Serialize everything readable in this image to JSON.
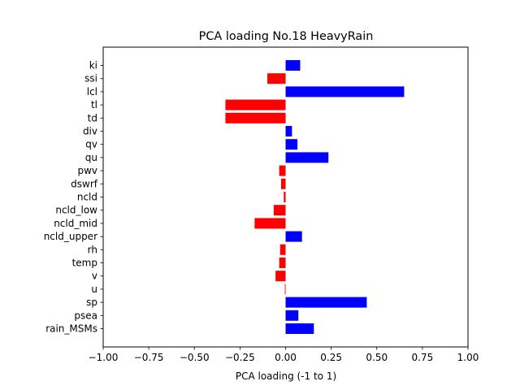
{
  "chart_data": {
    "type": "bar",
    "orientation": "horizontal",
    "title": "PCA loading No.18 HeavyRain",
    "xlabel": "PCA loading (-1 to 1)",
    "ylabel": "",
    "xlim": [
      -1.0,
      1.0
    ],
    "xticks": [
      "−1.00",
      "−0.75",
      "−0.50",
      "−0.25",
      "0.00",
      "0.25",
      "0.50",
      "0.75",
      "1.00"
    ],
    "xtick_values": [
      -1.0,
      -0.75,
      -0.5,
      -0.25,
      0.0,
      0.25,
      0.5,
      0.75,
      1.0
    ],
    "grid": false,
    "colors": {
      "positive": "#0000ff",
      "negative": "#ff0000"
    },
    "categories": [
      "ki",
      "ssi",
      "lcl",
      "tl",
      "td",
      "div",
      "qv",
      "qu",
      "pwv",
      "dswrf",
      "ncld",
      "ncld_low",
      "ncld_mid",
      "ncld_upper",
      "rh",
      "temp",
      "v",
      "u",
      "sp",
      "psea",
      "rain_MSMs"
    ],
    "values": [
      0.08,
      -0.1,
      0.65,
      -0.33,
      -0.33,
      0.035,
      0.065,
      0.235,
      -0.035,
      -0.025,
      -0.01,
      -0.065,
      -0.17,
      0.09,
      -0.03,
      -0.035,
      -0.055,
      -0.004,
      0.445,
      0.07,
      0.155
    ]
  }
}
